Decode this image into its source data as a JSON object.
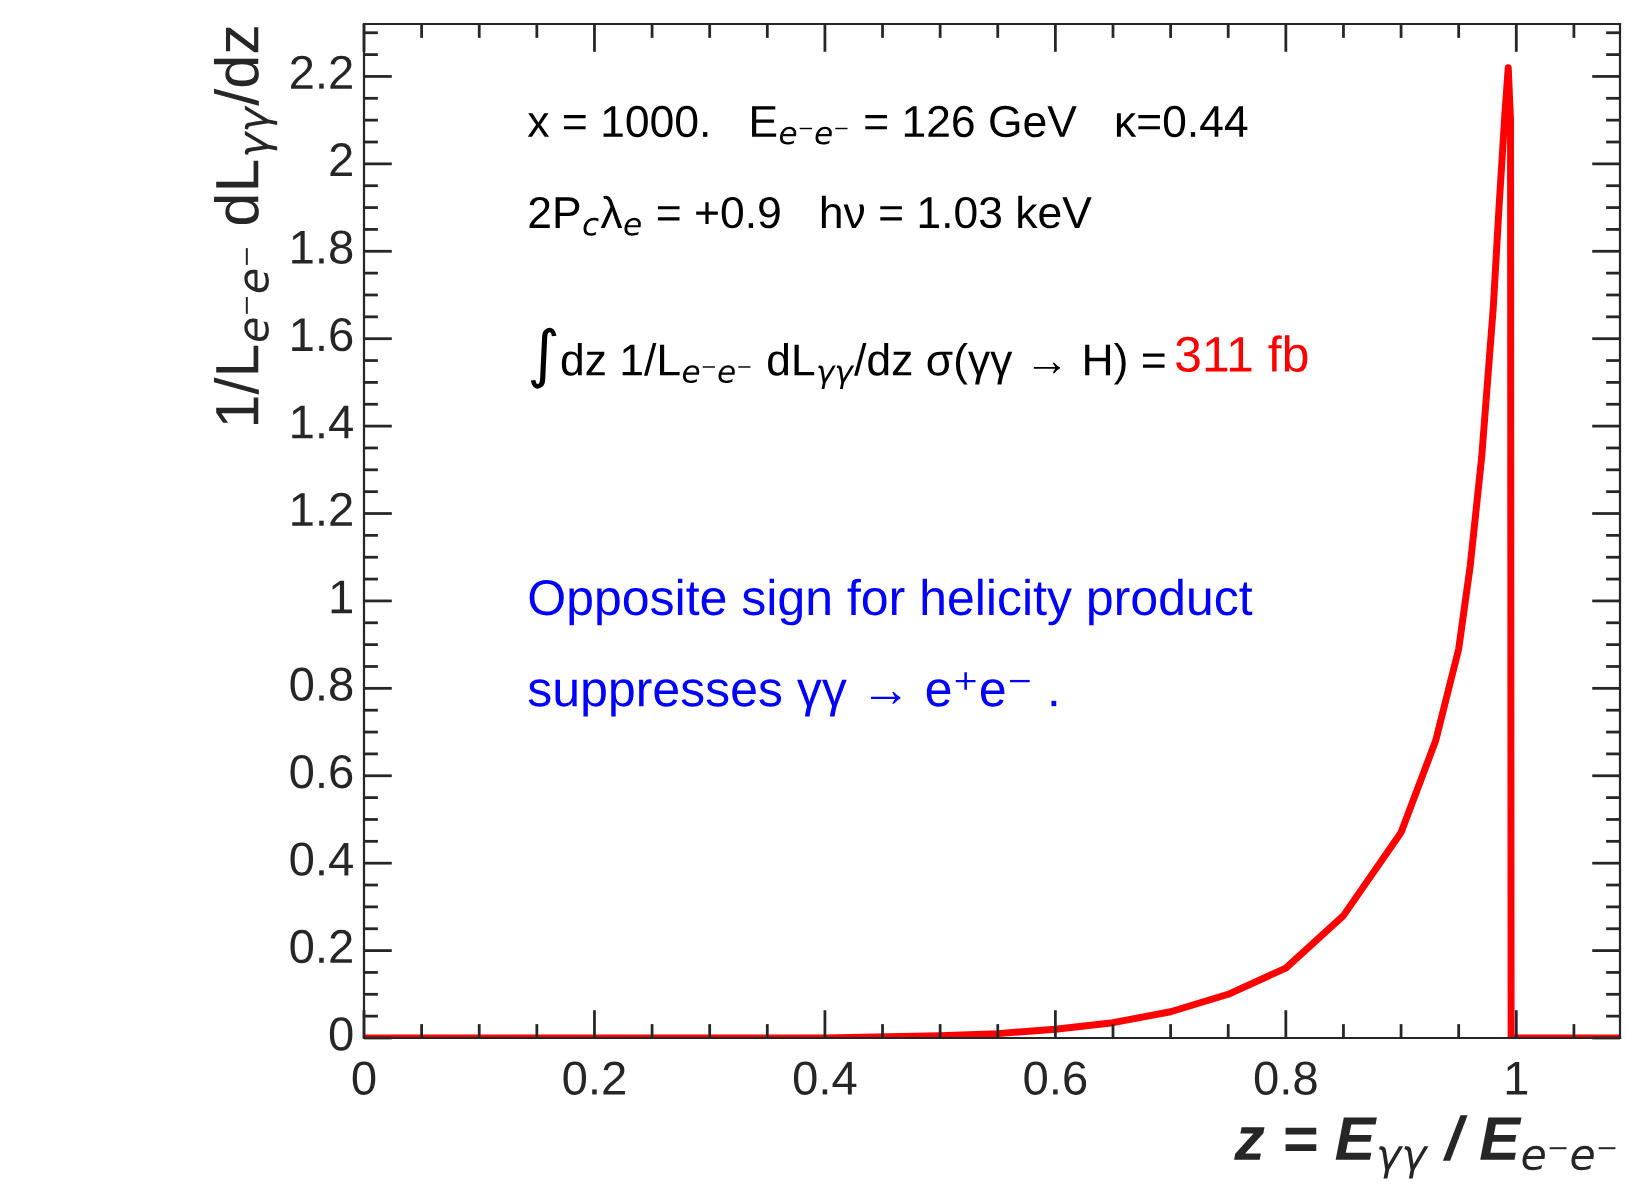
{
  "chart_data": {
    "type": "line",
    "xlabel": "z = E$_{γγ}$ / E$_{e⁻e⁻}$",
    "ylabel": "1/L$_{e⁻e⁻}$ dL$_{γγ}$/dz",
    "annotations": [
      "x = 1000.   E$_{e⁻e⁻}$ = 126 GeV   κ=0.44",
      "2P$_{c}$λ$_{e}$ = +0.9   hν = 1.03 keV",
      "∫dz 1/L$_{e⁻e⁻}$ dL$_{γγ}$/dz σ(γγ → H) =",
      "311 fb",
      "Opposite sign for helicity product",
      "suppresses γγ → e⁺e⁻ ."
    ],
    "x": [
      0,
      0.1,
      0.2,
      0.3,
      0.4,
      0.5,
      0.55,
      0.6,
      0.65,
      0.7,
      0.75,
      0.8,
      0.85,
      0.9,
      0.93,
      0.95,
      0.96,
      0.97,
      0.98,
      0.985,
      0.99,
      0.993,
      0.995,
      0.9955,
      1.0,
      1.09
    ],
    "series": [
      {
        "color": "#ff0000",
        "values": [
          0,
          0,
          0,
          0,
          0,
          0.005,
          0.01,
          0.02,
          0.035,
          0.06,
          0.1,
          0.16,
          0.28,
          0.47,
          0.68,
          0.89,
          1.08,
          1.33,
          1.67,
          1.9,
          2.11,
          2.22,
          2.1,
          0,
          0,
          0
        ]
      }
    ],
    "xlim": [
      0,
      1.09
    ],
    "ylim": [
      0,
      2.32
    ],
    "xticks": [
      0,
      0.2,
      0.4,
      0.6,
      0.8,
      1
    ],
    "yticks": [
      0,
      0.2,
      0.4,
      0.6,
      0.8,
      1,
      1.2,
      1.4,
      1.6,
      1.8,
      2,
      2.2
    ],
    "grid": false,
    "legend": false,
    "marker": "none",
    "line_style": "solid"
  }
}
